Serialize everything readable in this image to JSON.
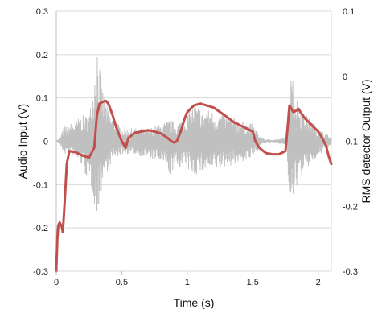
{
  "chart_data": {
    "type": "line",
    "title": "",
    "xlabel": "Time (s)",
    "ylabel_left": "Audio Input (V)",
    "ylabel_right": "RMS detector Output (V)",
    "xlim": [
      0,
      2.1
    ],
    "ylim_left": [
      -0.3,
      0.3
    ],
    "ylim_right": [
      -0.3,
      0.1
    ],
    "x_ticks": [
      "0",
      "0.5",
      "1",
      "1.5",
      "2"
    ],
    "y_left_ticks": [
      "-0.3",
      "-0.2",
      "-0.1",
      "0",
      "0.1",
      "0.2",
      "0.3"
    ],
    "y_right_ticks": [
      "-0.3",
      "-0.2",
      "-0.1",
      "0",
      "0.1"
    ],
    "grid": true,
    "series": [
      {
        "axis": "left",
        "color": "#c0c0c0",
        "envelope": [
          {
            "t": 0.0,
            "hi": 0.0,
            "lo": 0.0
          },
          {
            "t": 0.03,
            "hi": 0.01,
            "lo": -0.01
          },
          {
            "t": 0.06,
            "hi": 0.035,
            "lo": -0.03
          },
          {
            "t": 0.1,
            "hi": 0.04,
            "lo": -0.03
          },
          {
            "t": 0.15,
            "hi": 0.05,
            "lo": -0.04
          },
          {
            "t": 0.2,
            "hi": 0.06,
            "lo": -0.06
          },
          {
            "t": 0.25,
            "hi": 0.06,
            "lo": -0.1
          },
          {
            "t": 0.28,
            "hi": 0.12,
            "lo": -0.12
          },
          {
            "t": 0.31,
            "hi": 0.25,
            "lo": -0.19
          },
          {
            "t": 0.33,
            "hi": 0.18,
            "lo": -0.14
          },
          {
            "t": 0.36,
            "hi": 0.11,
            "lo": -0.09
          },
          {
            "t": 0.4,
            "hi": 0.07,
            "lo": -0.06
          },
          {
            "t": 0.45,
            "hi": 0.05,
            "lo": -0.04
          },
          {
            "t": 0.5,
            "hi": 0.03,
            "lo": -0.03
          },
          {
            "t": 0.55,
            "hi": 0.03,
            "lo": -0.03
          },
          {
            "t": 0.6,
            "hi": 0.03,
            "lo": -0.03
          },
          {
            "t": 0.7,
            "hi": 0.03,
            "lo": -0.04
          },
          {
            "t": 0.8,
            "hi": 0.04,
            "lo": -0.05
          },
          {
            "t": 0.87,
            "hi": 0.05,
            "lo": -0.08
          },
          {
            "t": 0.92,
            "hi": 0.04,
            "lo": -0.06
          },
          {
            "t": 0.98,
            "hi": 0.06,
            "lo": -0.06
          },
          {
            "t": 1.05,
            "hi": 0.085,
            "lo": -0.08
          },
          {
            "t": 1.1,
            "hi": 0.08,
            "lo": -0.075
          },
          {
            "t": 1.2,
            "hi": 0.07,
            "lo": -0.07
          },
          {
            "t": 1.3,
            "hi": 0.06,
            "lo": -0.06
          },
          {
            "t": 1.4,
            "hi": 0.05,
            "lo": -0.05
          },
          {
            "t": 1.5,
            "hi": 0.04,
            "lo": -0.04
          },
          {
            "t": 1.52,
            "hi": 0.03,
            "lo": -0.03
          },
          {
            "t": 1.56,
            "hi": 0.01,
            "lo": -0.01
          },
          {
            "t": 1.6,
            "hi": 0.005,
            "lo": -0.005
          },
          {
            "t": 1.7,
            "hi": 0.005,
            "lo": -0.005
          },
          {
            "t": 1.76,
            "hi": 0.01,
            "lo": -0.01
          },
          {
            "t": 1.78,
            "hi": 0.15,
            "lo": -0.14
          },
          {
            "t": 1.79,
            "hi": 0.245,
            "lo": -0.215
          },
          {
            "t": 1.81,
            "hi": 0.14,
            "lo": -0.13
          },
          {
            "t": 1.84,
            "hi": 0.1,
            "lo": -0.1
          },
          {
            "t": 1.88,
            "hi": 0.07,
            "lo": -0.08
          },
          {
            "t": 1.95,
            "hi": 0.05,
            "lo": -0.05
          },
          {
            "t": 2.0,
            "hi": 0.03,
            "lo": -0.04
          },
          {
            "t": 2.05,
            "hi": 0.02,
            "lo": -0.02
          },
          {
            "t": 2.1,
            "hi": 0.01,
            "lo": -0.01
          }
        ]
      },
      {
        "axis": "right",
        "color": "#c0504d",
        "x": [
          0.0,
          0.008,
          0.015,
          0.025,
          0.04,
          0.05,
          0.065,
          0.08,
          0.1,
          0.15,
          0.2,
          0.25,
          0.29,
          0.31,
          0.33,
          0.35,
          0.37,
          0.38,
          0.4,
          0.43,
          0.46,
          0.5,
          0.53,
          0.55,
          0.6,
          0.65,
          0.7,
          0.75,
          0.8,
          0.85,
          0.88,
          0.9,
          0.92,
          0.95,
          0.98,
          1.0,
          1.05,
          1.1,
          1.15,
          1.2,
          1.25,
          1.3,
          1.35,
          1.4,
          1.45,
          1.5,
          1.52,
          1.55,
          1.6,
          1.65,
          1.7,
          1.75,
          1.77,
          1.78,
          1.79,
          1.81,
          1.83,
          1.85,
          1.87,
          1.9,
          1.95,
          2.0,
          2.03,
          2.06,
          2.08,
          2.1
        ],
        "y": [
          -0.3,
          -0.25,
          -0.23,
          -0.225,
          -0.23,
          -0.24,
          -0.19,
          -0.135,
          -0.115,
          -0.117,
          -0.122,
          -0.125,
          -0.11,
          -0.06,
          -0.042,
          -0.04,
          -0.038,
          -0.038,
          -0.043,
          -0.06,
          -0.08,
          -0.1,
          -0.11,
          -0.095,
          -0.087,
          -0.085,
          -0.083,
          -0.085,
          -0.088,
          -0.095,
          -0.1,
          -0.102,
          -0.1,
          -0.085,
          -0.065,
          -0.055,
          -0.045,
          -0.042,
          -0.045,
          -0.048,
          -0.055,
          -0.062,
          -0.07,
          -0.075,
          -0.08,
          -0.085,
          -0.1,
          -0.11,
          -0.118,
          -0.12,
          -0.12,
          -0.115,
          -0.07,
          -0.045,
          -0.048,
          -0.055,
          -0.053,
          -0.05,
          -0.057,
          -0.065,
          -0.075,
          -0.085,
          -0.095,
          -0.107,
          -0.123,
          -0.135
        ]
      }
    ]
  }
}
